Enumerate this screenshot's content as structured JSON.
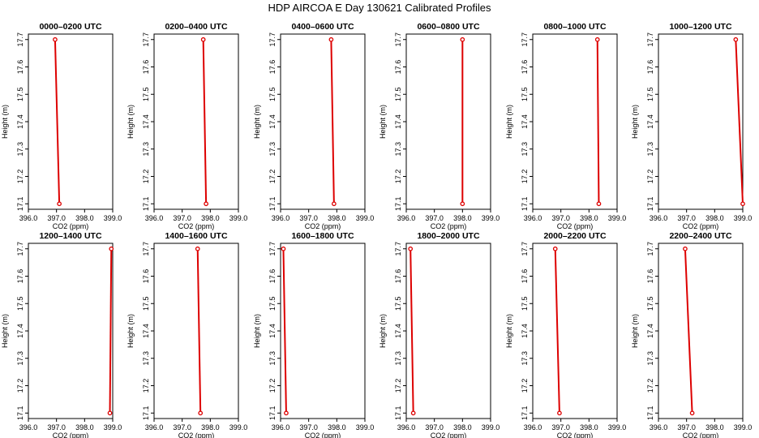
{
  "title": "HDP AIRCOA E  Day 130621  Calibrated Profiles",
  "chart_data": {
    "type": "line",
    "layout": "2 rows x 6 columns of small multiples",
    "xlabel": "CO2 (ppm)",
    "ylabel": "Height (m)",
    "xlim": [
      396.0,
      399.0
    ],
    "ylim": [
      17.08,
      17.72
    ],
    "xticks": [
      "396.0",
      "397.0",
      "398.0",
      "399.0"
    ],
    "yticks": [
      "17.1",
      "17.2",
      "17.3",
      "17.4",
      "17.5",
      "17.6",
      "17.7"
    ],
    "heights": [
      17.7,
      17.1
    ],
    "line_color": "#dd0000",
    "grid": false,
    "panels": [
      {
        "title": "0000–0200 UTC",
        "x": [
          396.95,
          397.1
        ]
      },
      {
        "title": "0200–0400 UTC",
        "x": [
          397.75,
          397.85
        ]
      },
      {
        "title": "0400–0600 UTC",
        "x": [
          397.8,
          397.9
        ]
      },
      {
        "title": "0600–0800 UTC",
        "x": [
          398.0,
          398.0
        ]
      },
      {
        "title": "0800–1000 UTC",
        "x": [
          398.3,
          398.35
        ]
      },
      {
        "title": "1000–1200 UTC",
        "x": [
          398.75,
          399.0
        ]
      },
      {
        "title": "1200–1400 UTC",
        "x": [
          398.95,
          398.9
        ]
      },
      {
        "title": "1400–1600 UTC",
        "x": [
          397.55,
          397.65
        ]
      },
      {
        "title": "1600–1800 UTC",
        "x": [
          396.1,
          396.2
        ]
      },
      {
        "title": "1800–2000 UTC",
        "x": [
          396.15,
          396.25
        ]
      },
      {
        "title": "2000–2200 UTC",
        "x": [
          396.8,
          396.95
        ]
      },
      {
        "title": "2200–2400 UTC",
        "x": [
          396.95,
          397.2
        ]
      }
    ]
  }
}
